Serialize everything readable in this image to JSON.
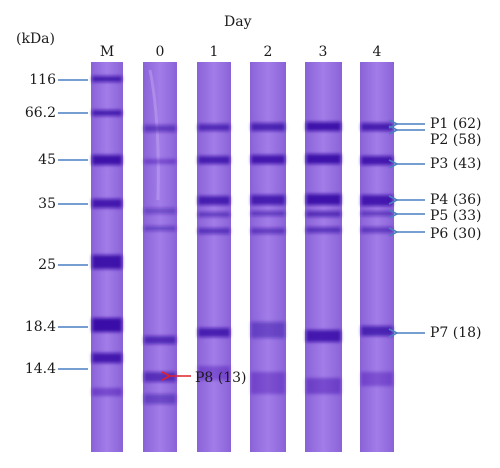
{
  "header": {
    "unit_label": "(kDa)",
    "axis_title": "Day"
  },
  "lanes": [
    {
      "label": "M"
    },
    {
      "label": "0"
    },
    {
      "label": "1"
    },
    {
      "label": "2"
    },
    {
      "label": "3"
    },
    {
      "label": "4"
    }
  ],
  "markers": [
    {
      "label": "116"
    },
    {
      "label": "66.2"
    },
    {
      "label": "45"
    },
    {
      "label": "35"
    },
    {
      "label": "25"
    },
    {
      "label": "18.4"
    },
    {
      "label": "14.4"
    }
  ],
  "proteins": [
    {
      "label": "P1 (62)"
    },
    {
      "label": "P2 (58)"
    },
    {
      "label": "P3 (43)"
    },
    {
      "label": "P4 (36)"
    },
    {
      "label": "P5 (33)"
    },
    {
      "label": "P6 (30)"
    },
    {
      "label": "P7 (18)"
    }
  ],
  "highlight": {
    "label": "P8 (13)"
  },
  "colors": {
    "gel": "#9a72e2",
    "band": "#3a0fa8",
    "marker_line": "#4a7fc0",
    "protein_arrow": "#4a7fc0",
    "highlight_arrow": "#e0202a"
  }
}
